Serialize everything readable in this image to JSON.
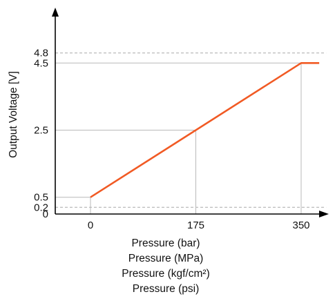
{
  "chart_data": {
    "type": "line",
    "xlabel_lines": [
      "Pressure (bar)",
      "Pressure (MPa)",
      "Pressure (kgf/cm²)",
      "Pressure (psi)"
    ],
    "ylabel": "Output Voltage [V]",
    "x_ticks": [
      "0",
      "175",
      "350"
    ],
    "y_ticks": [
      "0",
      "0.2",
      "0.5",
      "2.5",
      "4.5",
      "4.8"
    ],
    "xlim": [
      -35,
      380
    ],
    "ylim": [
      0,
      5.3
    ],
    "dashed_reference_levels": [
      0.2,
      4.8
    ],
    "series": [
      {
        "color": "#f15a24",
        "x": [
          0,
          350,
          380
        ],
        "y": [
          0.5,
          4.5,
          4.5
        ]
      }
    ],
    "grid": "partial guide lines at ticks",
    "legend": "none"
  }
}
